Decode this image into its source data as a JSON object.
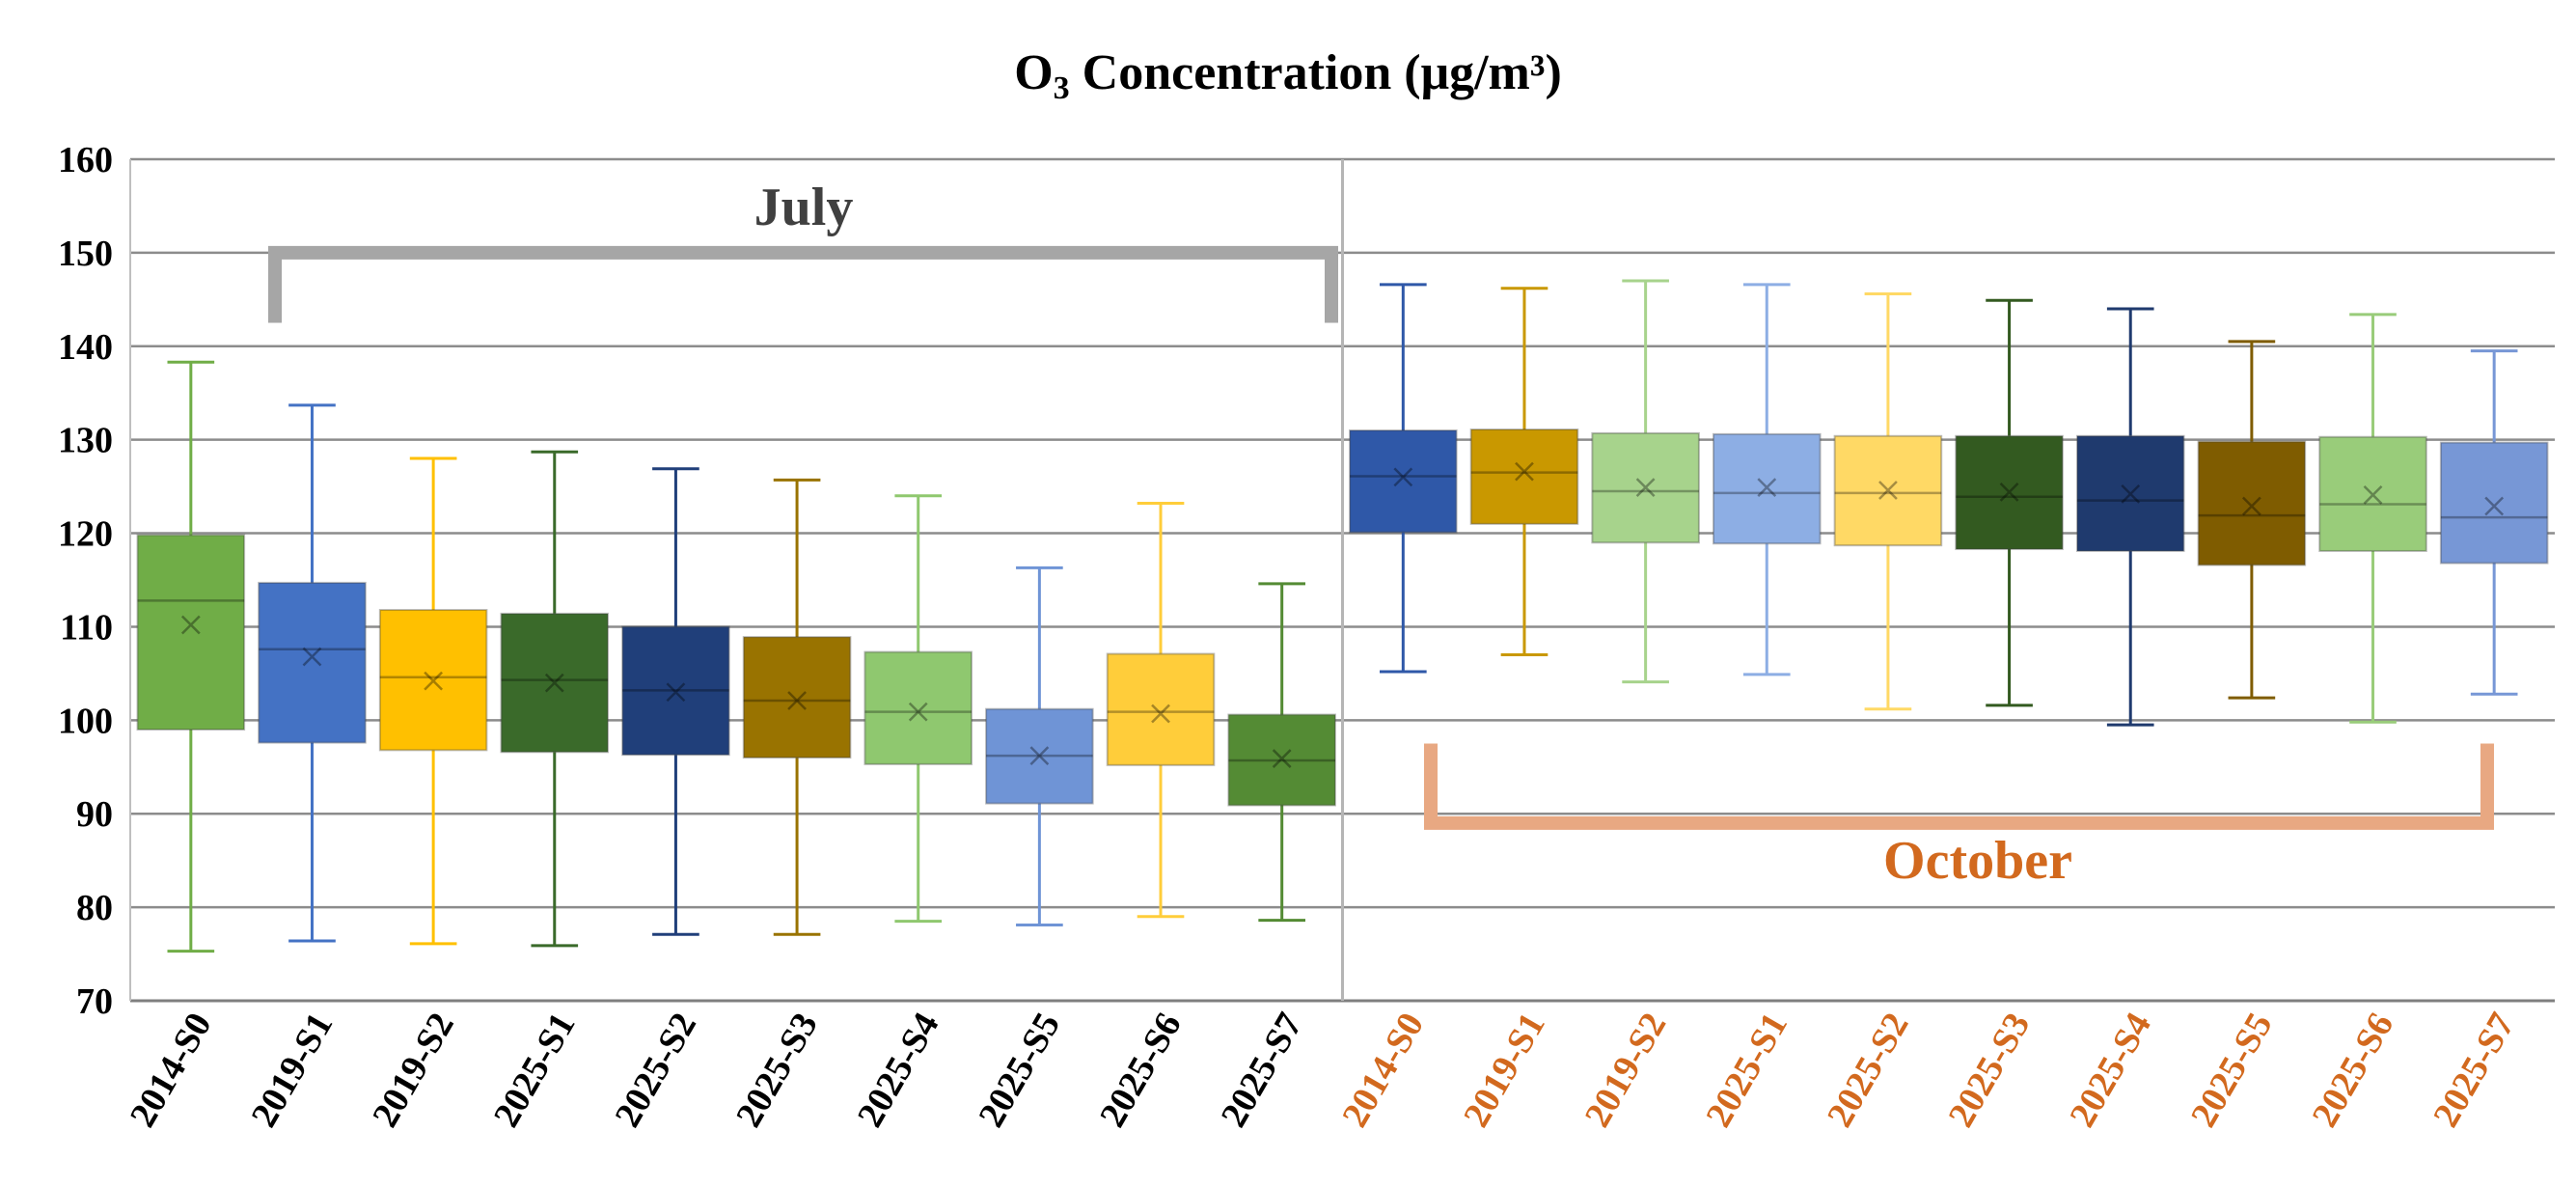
{
  "chart_data": {
    "type": "box",
    "title": {
      "main": "O",
      "sub": "3",
      "rest": " Concentration (μg/m³)"
    },
    "xlabel": "",
    "ylabel": "",
    "ylim": [
      70,
      160
    ],
    "yticks": [
      70,
      80,
      90,
      100,
      110,
      120,
      130,
      140,
      150,
      160
    ],
    "grid": true,
    "groups": [
      {
        "name": "July",
        "color": "#a6a6a6",
        "label_color": "#404040",
        "tick_color": "#000000"
      },
      {
        "name": "October",
        "color": "#e8a882",
        "label_color": "#d2691e",
        "tick_color": "#d2691e"
      }
    ],
    "boxes": [
      {
        "category": "2014-S0",
        "group": "July",
        "color": "#70ad47",
        "min": 75.3,
        "q1": 99,
        "median": 112.8,
        "q3": 119.8,
        "max": 138.3,
        "mean": 110.2
      },
      {
        "category": "2019-S1",
        "group": "July",
        "color": "#4472c4",
        "min": 76.4,
        "q1": 97.6,
        "median": 107.6,
        "q3": 114.7,
        "max": 133.7,
        "mean": 106.8
      },
      {
        "category": "2019-S2",
        "group": "July",
        "color": "#ffc000",
        "min": 76.1,
        "q1": 96.8,
        "median": 104.6,
        "q3": 111.8,
        "max": 128,
        "mean": 104.2
      },
      {
        "category": "2025-S1",
        "group": "July",
        "color": "#3a6a2a",
        "min": 75.9,
        "q1": 96.6,
        "median": 104.3,
        "q3": 111.4,
        "max": 128.7,
        "mean": 104
      },
      {
        "category": "2025-S2",
        "group": "July",
        "color": "#203f7a",
        "min": 77.1,
        "q1": 96.3,
        "median": 103.2,
        "q3": 110,
        "max": 126.9,
        "mean": 103
      },
      {
        "category": "2025-S3",
        "group": "July",
        "color": "#997300",
        "min": 77.1,
        "q1": 96,
        "median": 102.1,
        "q3": 108.9,
        "max": 125.7,
        "mean": 102.1
      },
      {
        "category": "2025-S4",
        "group": "July",
        "color": "#8fc86f",
        "min": 78.5,
        "q1": 95.3,
        "median": 100.9,
        "q3": 107.3,
        "max": 124,
        "mean": 100.9
      },
      {
        "category": "2025-S5",
        "group": "July",
        "color": "#6f94d6",
        "min": 78.1,
        "q1": 91.1,
        "median": 96.2,
        "q3": 101.2,
        "max": 116.3,
        "mean": 96.2
      },
      {
        "category": "2025-S6",
        "group": "July",
        "color": "#ffcd3a",
        "min": 79,
        "q1": 95.2,
        "median": 100.9,
        "q3": 107.1,
        "max": 123.2,
        "mean": 100.7
      },
      {
        "category": "2025-S7",
        "group": "July",
        "color": "#548b34",
        "min": 78.6,
        "q1": 90.9,
        "median": 95.7,
        "q3": 100.6,
        "max": 114.6,
        "mean": 95.9
      },
      {
        "category": "2014-S0",
        "group": "October",
        "color": "#2f58a8",
        "min": 105.2,
        "q1": 120.1,
        "median": 126.1,
        "q3": 131,
        "max": 146.6,
        "mean": 126
      },
      {
        "category": "2019-S1",
        "group": "October",
        "color": "#c99800",
        "min": 107,
        "q1": 121,
        "median": 126.5,
        "q3": 131.1,
        "max": 146.2,
        "mean": 126.6
      },
      {
        "category": "2019-S2",
        "group": "October",
        "color": "#a7d38c",
        "min": 104.1,
        "q1": 119,
        "median": 124.5,
        "q3": 130.7,
        "max": 147,
        "mean": 124.9
      },
      {
        "category": "2025-S1",
        "group": "October",
        "color": "#8daee4",
        "min": 104.9,
        "q1": 118.9,
        "median": 124.3,
        "q3": 130.6,
        "max": 146.6,
        "mean": 124.9
      },
      {
        "category": "2025-S2",
        "group": "October",
        "color": "#ffd965",
        "min": 101.2,
        "q1": 118.7,
        "median": 124.3,
        "q3": 130.4,
        "max": 145.6,
        "mean": 124.6
      },
      {
        "category": "2025-S3",
        "group": "October",
        "color": "#335a20",
        "min": 101.6,
        "q1": 118.3,
        "median": 123.9,
        "q3": 130.4,
        "max": 144.9,
        "mean": 124.4
      },
      {
        "category": "2025-S4",
        "group": "October",
        "color": "#1f3a6e",
        "min": 99.5,
        "q1": 118.1,
        "median": 123.5,
        "q3": 130.4,
        "max": 144,
        "mean": 124.2
      },
      {
        "category": "2025-S5",
        "group": "October",
        "color": "#7f5c00",
        "min": 102.4,
        "q1": 116.6,
        "median": 121.9,
        "q3": 129.8,
        "max": 140.5,
        "mean": 122.9
      },
      {
        "category": "2025-S6",
        "group": "October",
        "color": "#99cc7a",
        "min": 99.8,
        "q1": 118.1,
        "median": 123.1,
        "q3": 130.3,
        "max": 143.4,
        "mean": 124.1
      },
      {
        "category": "2025-S7",
        "group": "October",
        "color": "#7797d6",
        "min": 102.8,
        "q1": 116.8,
        "median": 121.7,
        "q3": 129.7,
        "max": 139.5,
        "mean": 122.9
      }
    ]
  }
}
